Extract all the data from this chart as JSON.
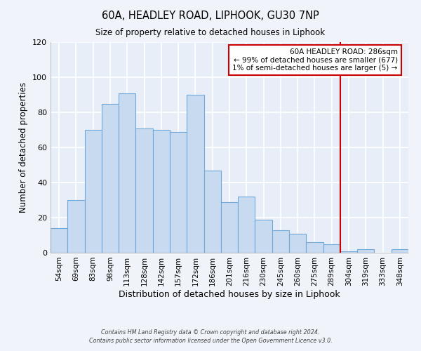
{
  "title": "60A, HEADLEY ROAD, LIPHOOK, GU30 7NP",
  "subtitle": "Size of property relative to detached houses in Liphook",
  "xlabel": "Distribution of detached houses by size in Liphook",
  "ylabel": "Number of detached properties",
  "bar_labels": [
    "54sqm",
    "69sqm",
    "83sqm",
    "98sqm",
    "113sqm",
    "128sqm",
    "142sqm",
    "157sqm",
    "172sqm",
    "186sqm",
    "201sqm",
    "216sqm",
    "230sqm",
    "245sqm",
    "260sqm",
    "275sqm",
    "289sqm",
    "304sqm",
    "319sqm",
    "333sqm",
    "348sqm"
  ],
  "bar_heights": [
    14,
    30,
    70,
    85,
    91,
    71,
    70,
    69,
    90,
    47,
    29,
    32,
    19,
    13,
    11,
    6,
    5,
    1,
    2,
    0,
    2
  ],
  "bar_color": "#c8daf0",
  "bar_edge_color": "#6fa8d8",
  "ylim": [
    0,
    120
  ],
  "yticks": [
    0,
    20,
    40,
    60,
    80,
    100,
    120
  ],
  "vline_x": 16.5,
  "vline_color": "#cc0000",
  "annotation_text": "60A HEADLEY ROAD: 286sqm\n← 99% of detached houses are smaller (677)\n1% of semi-detached houses are larger (5) →",
  "annotation_box_color": "#ffffff",
  "annotation_box_edge": "#cc0000",
  "footer_line1": "Contains HM Land Registry data © Crown copyright and database right 2024.",
  "footer_line2": "Contains public sector information licensed under the Open Government Licence v3.0.",
  "background_color": "#f0f4fa",
  "plot_bg_color": "#e8eef8",
  "grid_color": "#ffffff"
}
